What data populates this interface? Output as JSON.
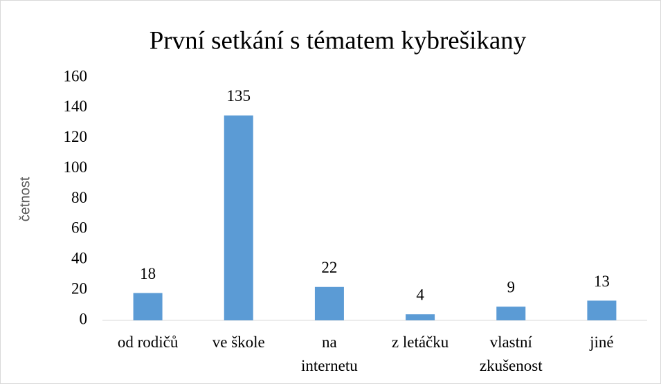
{
  "chart_data": {
    "type": "bar",
    "title": "První setkání s tématem kybrešikany",
    "y_label": "četnost",
    "categories": [
      "od rodičů",
      "ve škole",
      "na\ninternetu",
      "z letáčku",
      "vlastní\nzkušenost",
      "jiné"
    ],
    "values": [
      18,
      135,
      22,
      4,
      9,
      13
    ],
    "color": "#5b9bd5",
    "ylim": [
      0,
      160
    ],
    "yticks": [
      0,
      20,
      40,
      60,
      80,
      100,
      120,
      140,
      160
    ],
    "grid": false
  }
}
